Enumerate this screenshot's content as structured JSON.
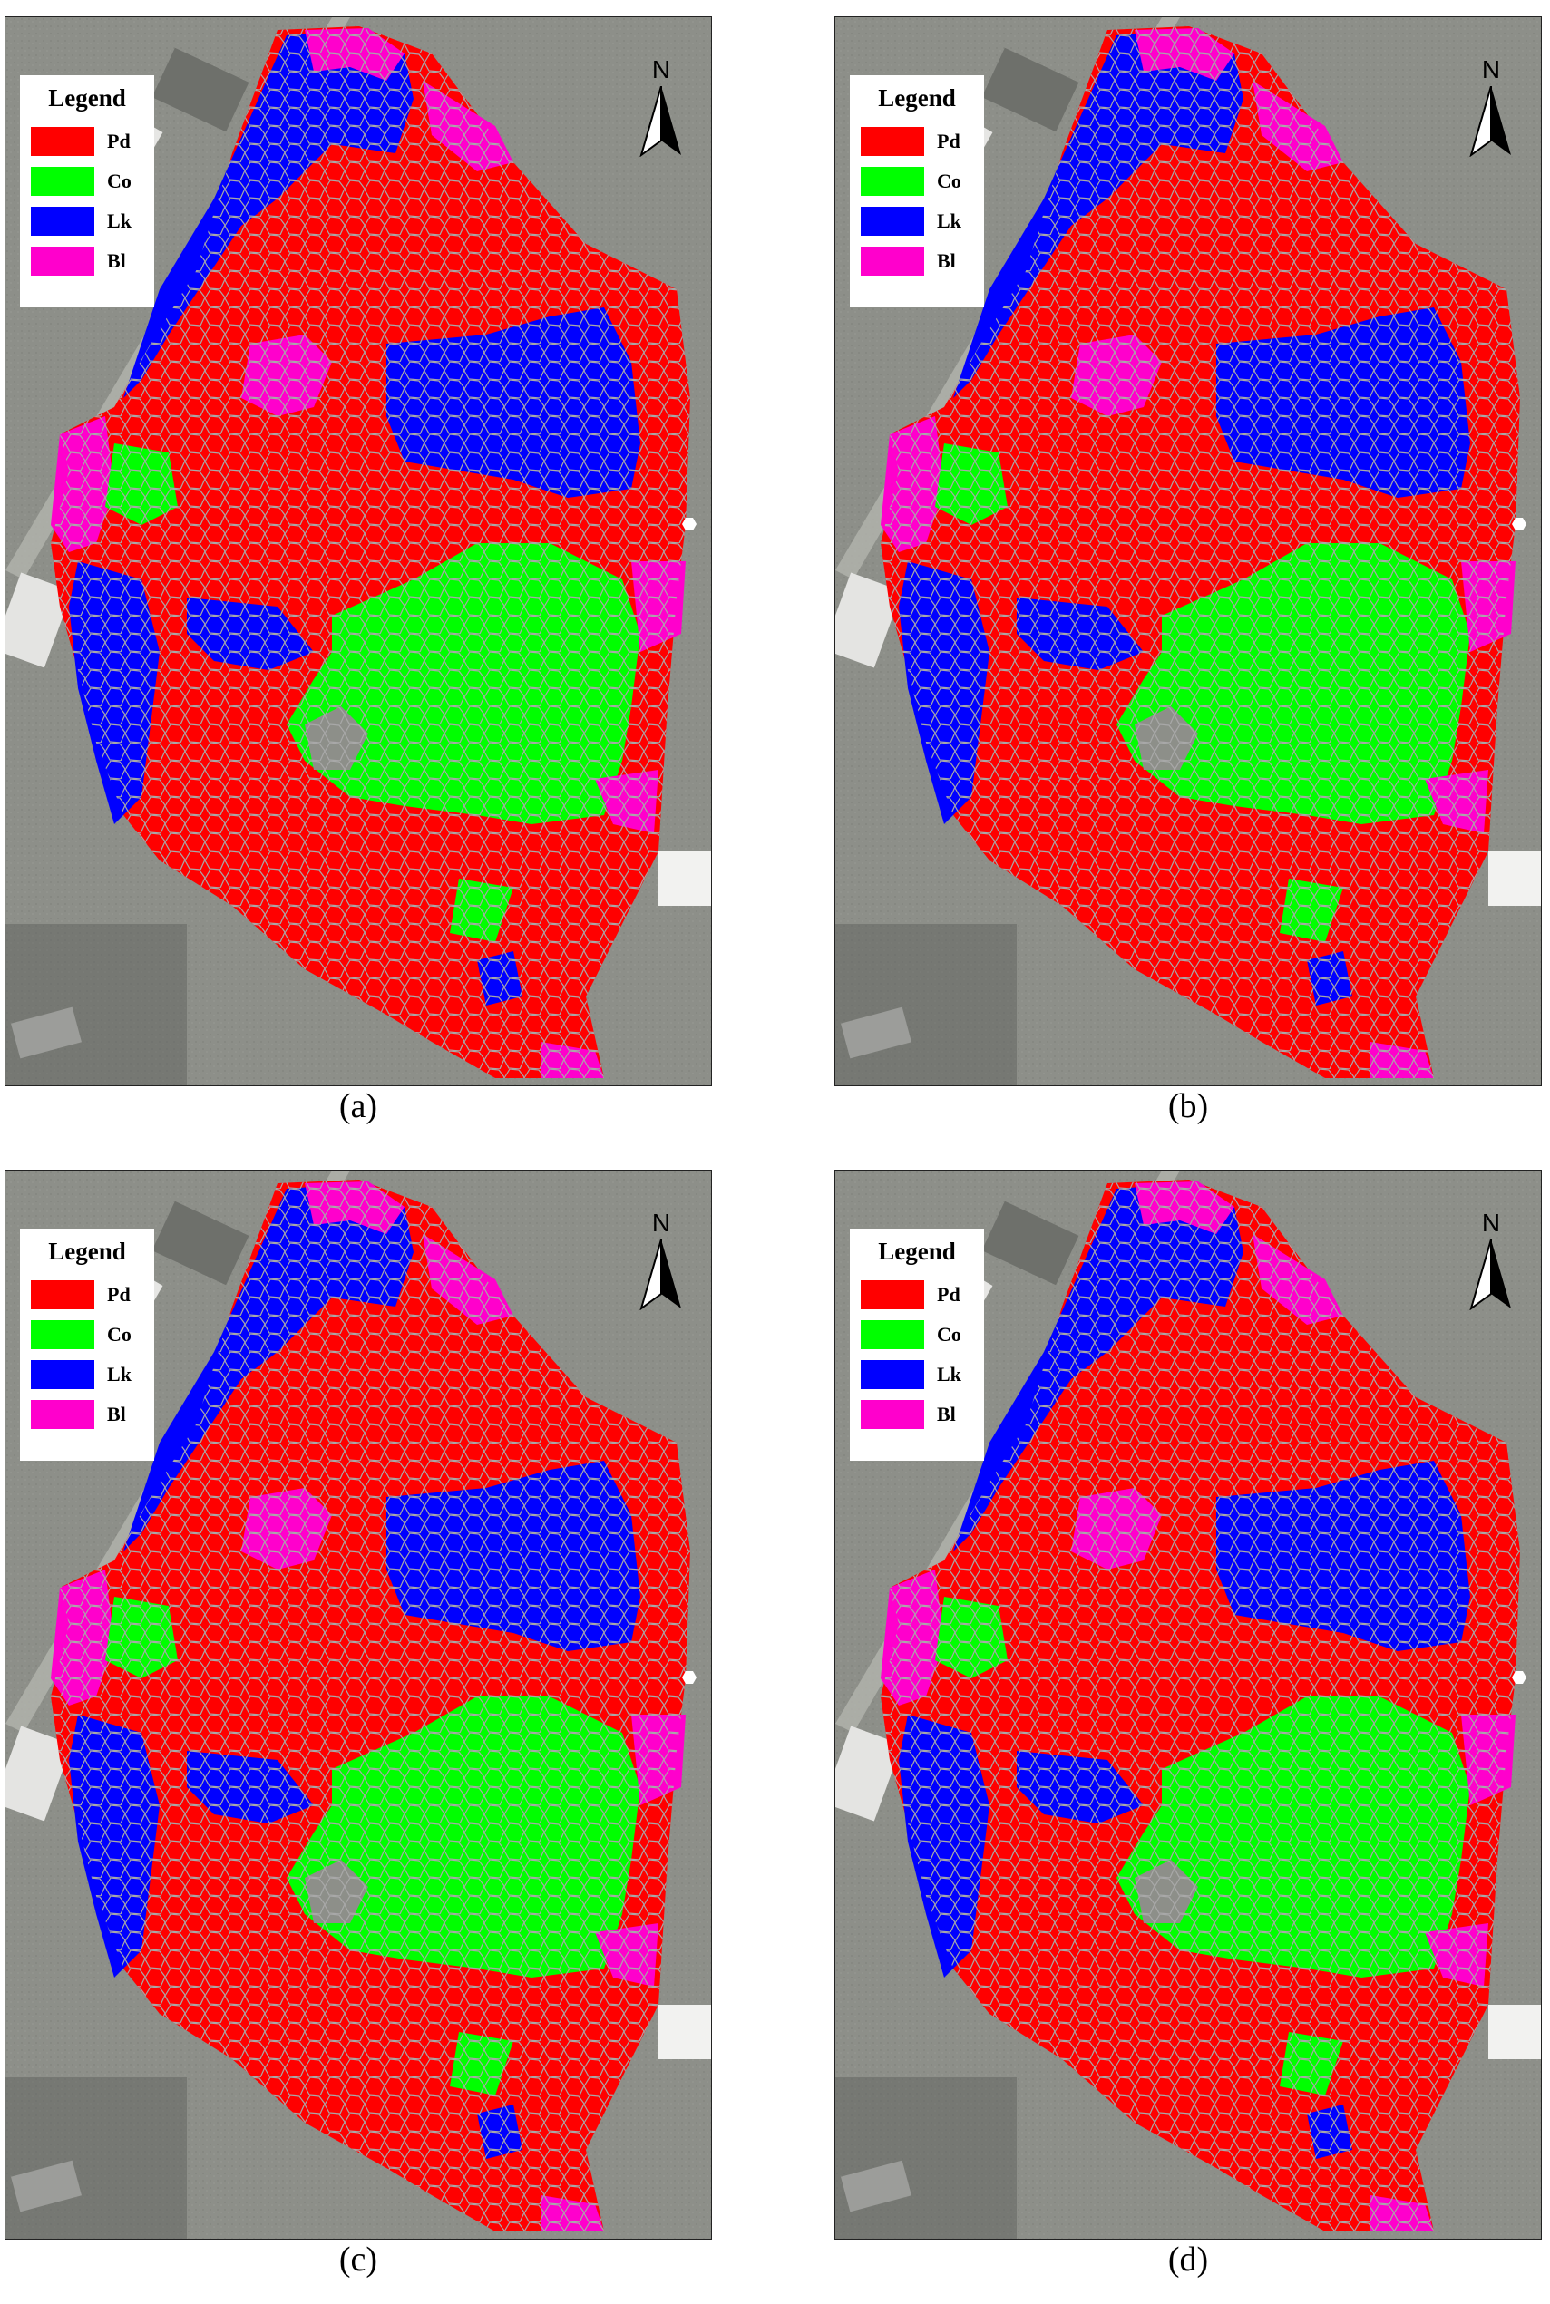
{
  "legend": {
    "title": "Legend",
    "items": [
      {
        "label": "Pd",
        "color": "#ff0000"
      },
      {
        "label": "Co",
        "color": "#00ff00"
      },
      {
        "label": "Lk",
        "color": "#0000ff"
      },
      {
        "label": "Bl",
        "color": "#ff00cc"
      }
    ]
  },
  "north_arrow": {
    "letter": "N"
  },
  "panels": [
    {
      "caption": "(a)"
    },
    {
      "caption": "(b)"
    },
    {
      "caption": "(c)"
    },
    {
      "caption": "(d)"
    }
  ],
  "colors": {
    "background_imagery": "#8d8f89",
    "segment_border": "#9a9a9a"
  }
}
